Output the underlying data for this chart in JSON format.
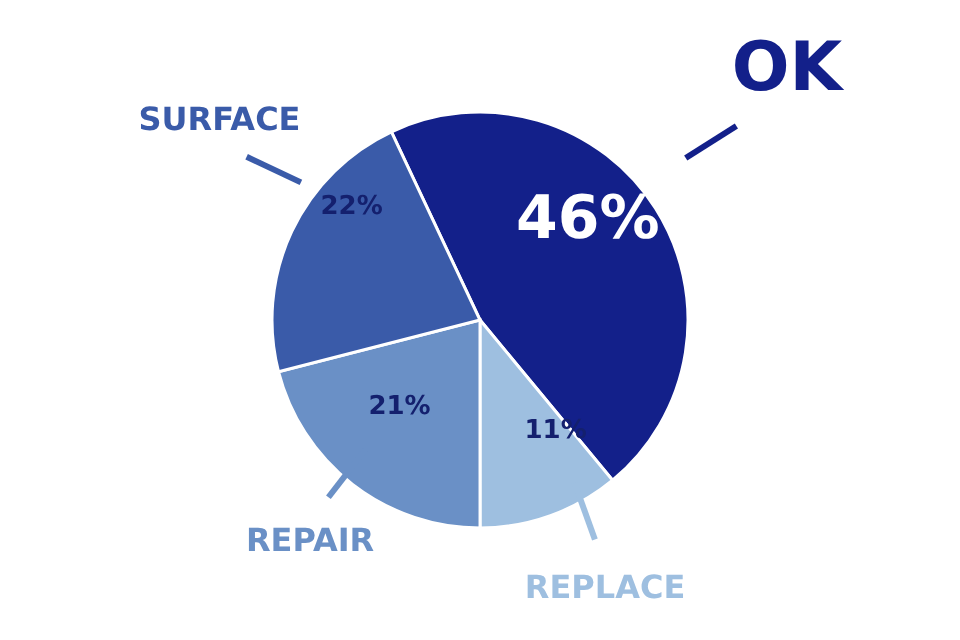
{
  "chart_data": {
    "type": "pie",
    "categories": [
      "OK",
      "REPLACE",
      "REPAIR",
      "SURFACE"
    ],
    "values": [
      46,
      11,
      21,
      22
    ],
    "colors": [
      "#13208a",
      "#9ebfe0",
      "#6a90c6",
      "#3a5ba9"
    ],
    "value_labels": [
      "46%",
      "11%",
      "21%",
      "22%"
    ]
  }
}
